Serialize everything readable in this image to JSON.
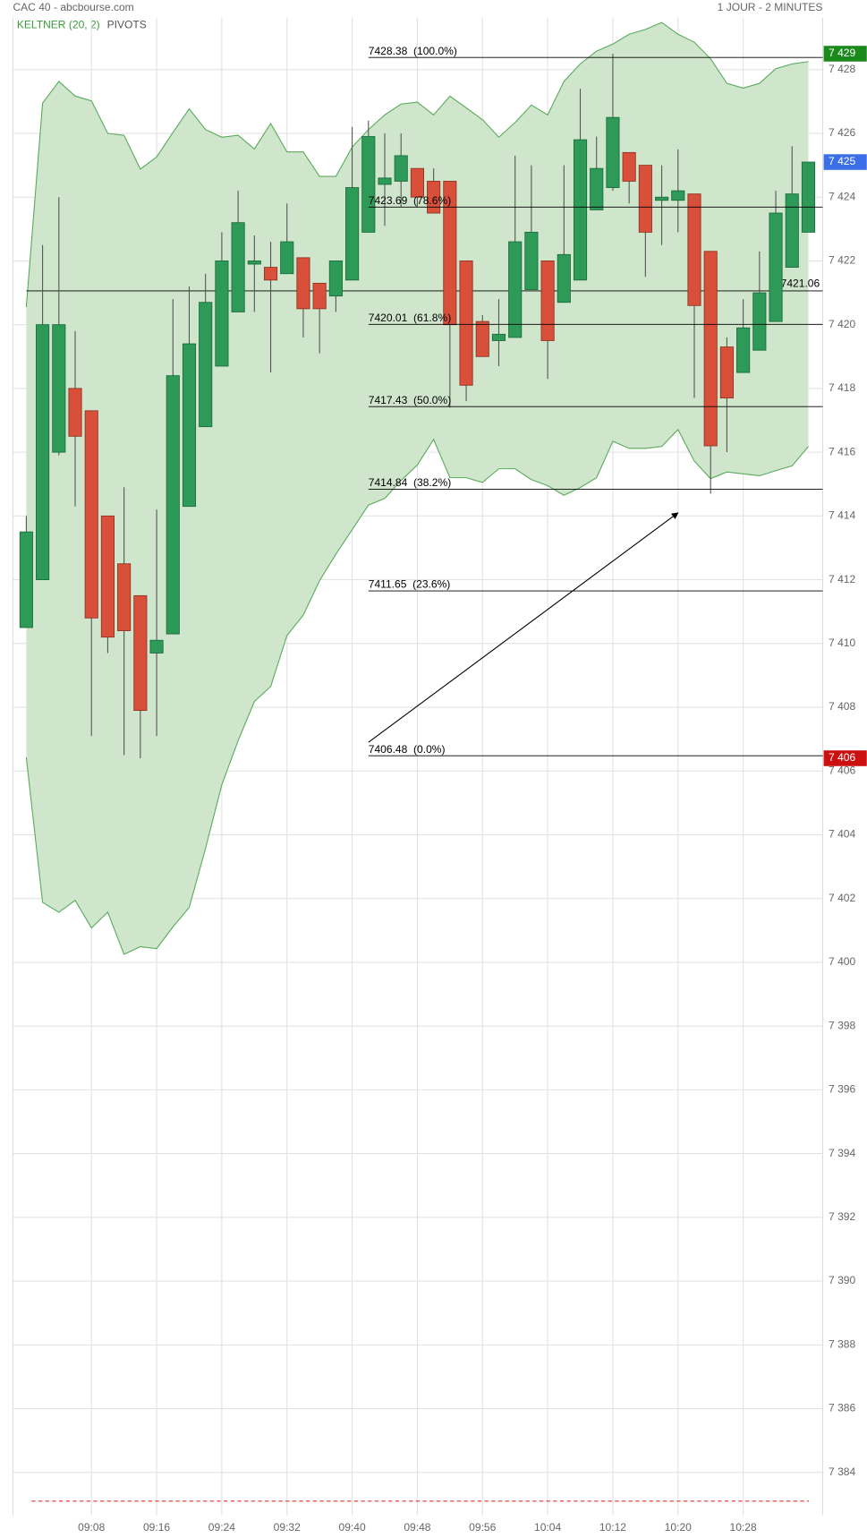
{
  "chart_data": {
    "type": "candlestick",
    "title": "CAC 40 - abcbourse.com",
    "subtitle": "1 JOUR - 2 MINUTES",
    "indicators": [
      "KELTNER (20, 2)",
      "PIVOTS"
    ],
    "x": [
      "09:00",
      "09:02",
      "09:04",
      "09:06",
      "09:08",
      "09:10",
      "09:12",
      "09:14",
      "09:16",
      "09:18",
      "09:20",
      "09:22",
      "09:24",
      "09:26",
      "09:28",
      "09:30",
      "09:32",
      "09:34",
      "09:36",
      "09:38",
      "09:40",
      "09:42",
      "09:44",
      "09:46",
      "09:48",
      "09:50",
      "09:52",
      "09:54",
      "09:56",
      "09:58",
      "10:00",
      "10:02",
      "10:04",
      "10:06",
      "10:08",
      "10:10",
      "10:12",
      "10:14",
      "10:16",
      "10:18",
      "10:20",
      "10:22",
      "10:24",
      "10:26",
      "10:28",
      "10:30",
      "10:32",
      "10:34",
      "10:36"
    ],
    "open": [
      7410.5,
      7412.0,
      7416.0,
      7418.0,
      7417.3,
      7414.0,
      7412.5,
      7411.5,
      7409.7,
      7410.3,
      7414.3,
      7416.8,
      7418.7,
      7420.4,
      7421.9,
      7421.8,
      7421.6,
      7422.1,
      7421.3,
      7420.9,
      7421.4,
      7422.9,
      7424.4,
      7424.5,
      7424.9,
      7424.5,
      7424.5,
      7422.0,
      7420.1,
      7419.5,
      7419.6,
      7421.1,
      7422.0,
      7420.7,
      7421.4,
      7423.6,
      7424.3,
      7425.4,
      7425.0,
      7423.9,
      7423.9,
      7424.1,
      7422.3,
      7419.3,
      7418.5,
      7419.2,
      7420.1,
      7421.8,
      7422.9
    ],
    "high": [
      7414.0,
      7422.5,
      7424.0,
      7419.8,
      7417.3,
      7414.0,
      7414.9,
      7411.5,
      7414.2,
      7420.8,
      7421.2,
      7421.6,
      7422.9,
      7424.2,
      7422.8,
      7422.6,
      7423.8,
      7422.1,
      7421.3,
      7422.0,
      7426.2,
      7426.4,
      7426.0,
      7426.0,
      7424.9,
      7424.9,
      7424.5,
      7422.0,
      7420.3,
      7420.8,
      7425.3,
      7425.0,
      7422.0,
      7425.0,
      7427.4,
      7425.9,
      7428.5,
      7425.4,
      7425.0,
      7425.0,
      7425.5,
      7424.1,
      7422.3,
      7419.6,
      7420.8,
      7422.3,
      7424.2,
      7425.6,
      7425.1
    ],
    "low": [
      7410.5,
      7412.0,
      7415.9,
      7414.3,
      7407.1,
      7409.7,
      7406.5,
      7406.4,
      7407.1,
      7410.3,
      7414.3,
      7416.8,
      7418.7,
      7420.4,
      7420.4,
      7418.5,
      7421.6,
      7419.6,
      7419.1,
      7420.4,
      7421.4,
      7422.9,
      7423.1,
      7423.7,
      7423.7,
      7423.5,
      7417.4,
      7417.6,
      7419.0,
      7418.7,
      7419.6,
      7421.1,
      7418.3,
      7420.7,
      7421.4,
      7423.6,
      7424.2,
      7423.8,
      7421.5,
      7422.5,
      7422.9,
      7417.7,
      7414.7,
      7416.0,
      7418.5,
      7419.2,
      7420.1,
      7421.8,
      7422.9
    ],
    "close": [
      7413.5,
      7420.0,
      7420.0,
      7416.5,
      7410.8,
      7410.2,
      7410.4,
      7407.9,
      7410.1,
      7418.4,
      7419.4,
      7420.7,
      7422.0,
      7423.2,
      7422.0,
      7421.4,
      7422.6,
      7420.5,
      7420.5,
      7422.0,
      7424.3,
      7425.9,
      7424.6,
      7425.3,
      7424.0,
      7423.5,
      7420.0,
      7418.1,
      7419.0,
      7419.7,
      7422.6,
      7422.9,
      7419.5,
      7422.2,
      7425.8,
      7424.9,
      7426.5,
      7424.5,
      7422.9,
      7424.0,
      7424.2,
      7420.6,
      7416.2,
      7417.7,
      7419.9,
      7421.0,
      7423.5,
      7424.1,
      7425.1
    ],
    "up_color": "#2e9a58",
    "down_color": "#d9503a",
    "keltner": {
      "color": "#5aaa5a",
      "fill": "#cfe6cd",
      "upper": [
        7420.55,
        7426.95,
        7427.63,
        7427.17,
        7427.02,
        7426.0,
        7425.94,
        7424.88,
        7425.26,
        7426.03,
        7426.77,
        7426.12,
        7425.88,
        7425.94,
        7425.51,
        7426.31,
        7425.42,
        7425.42,
        7424.65,
        7424.65,
        7425.57,
        7426.12,
        7426.58,
        7426.92,
        7426.98,
        7426.58,
        7427.17,
        7426.8,
        7426.43,
        7425.88,
        7426.34,
        7426.89,
        7426.58,
        7427.63,
        7428.18,
        7428.58,
        7428.8,
        7429.11,
        7429.26,
        7429.48,
        7429.11,
        7428.86,
        7428.34,
        7427.57,
        7427.42,
        7427.57,
        7428.03,
        7428.18,
        7428.25
      ],
      "lower": [
        7406.43,
        7401.88,
        7401.57,
        7401.94,
        7401.08,
        7401.57,
        7400.25,
        7400.49,
        7400.43,
        7401.11,
        7401.72,
        7403.57,
        7405.57,
        7406.95,
        7408.18,
        7408.65,
        7410.25,
        7410.89,
        7411.97,
        7412.8,
        7413.57,
        7414.34,
        7414.55,
        7415.11,
        7415.6,
        7416.4,
        7415.2,
        7415.2,
        7415.05,
        7415.48,
        7415.48,
        7415.14,
        7414.95,
        7414.65,
        7414.89,
        7415.2,
        7416.34,
        7416.12,
        7416.12,
        7416.18,
        7416.71,
        7415.72,
        7415.17,
        7415.38,
        7415.32,
        7415.26,
        7415.42,
        7415.57,
        7416.18
      ]
    },
    "fibonacci": {
      "x_start": "09:42",
      "levels": [
        {
          "value": 7428.38,
          "label": "7428.38  (100.0%)"
        },
        {
          "value": 7423.69,
          "label": "7423.69  (78.6%)"
        },
        {
          "value": 7420.01,
          "label": "7420.01  (61.8%)"
        },
        {
          "value": 7417.43,
          "label": "7417.43  (50.0%)"
        },
        {
          "value": 7414.84,
          "label": "7414.84  (38.2%)"
        },
        {
          "value": 7411.65,
          "label": "7411.65  (23.6%)"
        },
        {
          "value": 7406.48,
          "label": "7406.48  (0.0%)"
        }
      ]
    },
    "level_line": 7421.06,
    "arrow": {
      "x": [
        "09:42",
        "10:20"
      ],
      "y": [
        7406.9,
        7414.1
      ]
    },
    "markers": [
      {
        "value": 7428.5,
        "label": "7 429",
        "color": "#1a8a1a"
      },
      {
        "value": 7425.1,
        "label": "7 425",
        "color": "#3b6fe8"
      },
      {
        "value": 7406.4,
        "label": "7 406",
        "color": "#cc1010"
      }
    ],
    "pivot": 7383.1,
    "xlim": [
      "08:58",
      "10:38"
    ],
    "ylim": [
      7382.65,
      7429.63
    ],
    "xticks": [
      "09:08",
      "09:16",
      "09:24",
      "09:32",
      "09:40",
      "09:48",
      "09:56",
      "10:04",
      "10:12",
      "10:20",
      "10:28"
    ],
    "yticks": [
      {
        "value": 7384,
        "label": "7 384"
      },
      {
        "value": 7386,
        "label": "7 386"
      },
      {
        "value": 7388,
        "label": "7 388"
      },
      {
        "value": 7390,
        "label": "7 390"
      },
      {
        "value": 7392,
        "label": "7 392"
      },
      {
        "value": 7394,
        "label": "7 394"
      },
      {
        "value": 7396,
        "label": "7 396"
      },
      {
        "value": 7398,
        "label": "7 398"
      },
      {
        "value": 7400,
        "label": "7 400"
      },
      {
        "value": 7402,
        "label": "7 402"
      },
      {
        "value": 7404,
        "label": "7 404"
      },
      {
        "value": 7406,
        "label": "7 406"
      },
      {
        "value": 7408,
        "label": "7 408"
      },
      {
        "value": 7410,
        "label": "7 410"
      },
      {
        "value": 7412,
        "label": "7 412"
      },
      {
        "value": 7414,
        "label": "7 414"
      },
      {
        "value": 7416,
        "label": "7 416"
      },
      {
        "value": 7418,
        "label": "7 418"
      },
      {
        "value": 7420,
        "label": "7 420"
      },
      {
        "value": 7422,
        "label": "7 422"
      },
      {
        "value": 7424,
        "label": "7 424"
      },
      {
        "value": 7426,
        "label": "7 426"
      },
      {
        "value": 7428,
        "label": "7 428"
      }
    ],
    "grid": true
  }
}
